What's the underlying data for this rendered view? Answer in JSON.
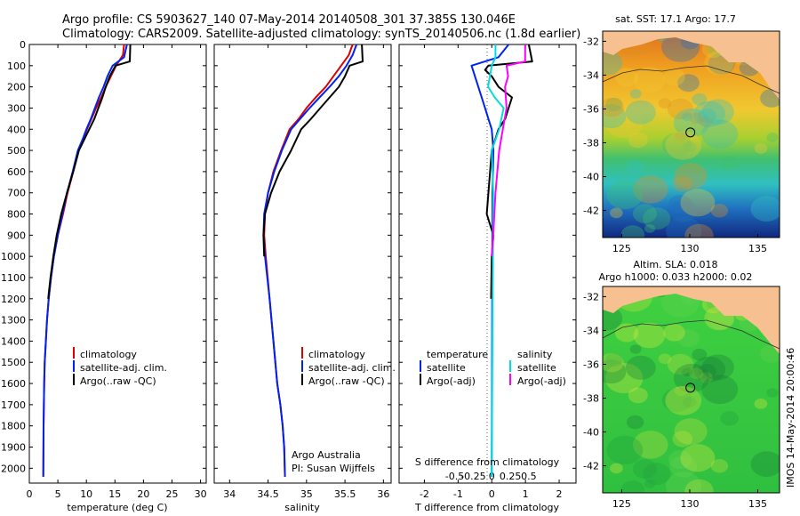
{
  "title_line1": "Argo profile: CS 5903627_140 07-May-2014 20140508_301 37.385S 130.046E",
  "title_line2": "Climatology: CARS2009. Satellite-adjusted climatology: synTS_20140506.nc (1.8d earlier)",
  "side_stamp": "IMOS 14-May-2014 20:00:46",
  "colors": {
    "clim": "#dd0000",
    "sat": "#0022ee",
    "argo": "#000000",
    "sat_s": "#00dddd",
    "argo_s": "#ff00ff",
    "land": "#f7c090"
  },
  "chart_data": [
    {
      "type": "line",
      "id": "temperature",
      "xlabel": "temperature (deg C)",
      "ylabel": "",
      "xlim": [
        0,
        31
      ],
      "ylim": [
        2070,
        0
      ],
      "xticks": [
        0,
        5,
        10,
        15,
        20,
        25,
        30
      ],
      "yticks": [
        0,
        100,
        200,
        300,
        400,
        500,
        600,
        700,
        800,
        900,
        1000,
        1100,
        1200,
        1300,
        1400,
        1500,
        1600,
        1700,
        1800,
        1900,
        2000
      ],
      "legend": [
        "climatology",
        "satellite-adj. clim.",
        "Argo(..raw -QC)"
      ],
      "series": [
        {
          "name": "climatology",
          "color": "#dd0000",
          "x": [
            16.6,
            16.4,
            15.2,
            14.3,
            13.4,
            12.6,
            11.7,
            10.9,
            10.1,
            9.4,
            8.6,
            7.7,
            6.7,
            5.9,
            5.0,
            4.3,
            3.8,
            3.4,
            3.1,
            2.9,
            2.7,
            2.6,
            2.5,
            2.45
          ],
          "y": [
            0,
            50,
            100,
            150,
            200,
            250,
            300,
            350,
            400,
            450,
            500,
            600,
            700,
            800,
            900,
            1000,
            1100,
            1200,
            1300,
            1400,
            1500,
            1600,
            1800,
            2040
          ]
        },
        {
          "name": "satellite-adj. clim.",
          "color": "#0022ee",
          "x": [
            17.1,
            16.6,
            14.6,
            13.7,
            13.0,
            12.2,
            11.5,
            10.8,
            10.0,
            9.3,
            8.5,
            7.6,
            6.6,
            5.8,
            5.0,
            4.3,
            3.8,
            3.4,
            3.1,
            2.9,
            2.7,
            2.6,
            2.5,
            2.45
          ],
          "y": [
            0,
            60,
            100,
            150,
            200,
            250,
            300,
            350,
            400,
            450,
            500,
            600,
            700,
            800,
            900,
            1000,
            1100,
            1200,
            1300,
            1400,
            1500,
            1600,
            1800,
            2040
          ]
        },
        {
          "name": "Argo(..raw -QC)",
          "color": "#000000",
          "x": [
            17.7,
            17.6,
            15.1,
            14.1,
            13.4,
            12.8,
            12.1,
            11.4,
            10.5,
            9.6,
            8.7,
            7.7,
            6.6,
            5.6,
            4.8,
            4.2,
            3.7,
            3.3
          ],
          "y": [
            0,
            80,
            100,
            150,
            200,
            250,
            300,
            350,
            400,
            450,
            500,
            600,
            700,
            800,
            900,
            1000,
            1100,
            1200
          ]
        }
      ]
    },
    {
      "type": "line",
      "id": "salinity",
      "xlabel": "salinity",
      "xlim": [
        33.8,
        36.1
      ],
      "ylim": [
        2070,
        0
      ],
      "xticks": [
        34,
        34.5,
        35,
        35.5,
        36
      ],
      "legend": [
        "climatology",
        "satellite-adj. clim.",
        "Argo(..raw -QC)"
      ],
      "annotations": [
        "Argo Australia",
        "PI: Susan Wijffels"
      ],
      "series": [
        {
          "name": "climatology",
          "color": "#dd0000",
          "x": [
            35.6,
            35.55,
            35.45,
            35.35,
            35.25,
            35.12,
            35.0,
            34.9,
            34.78,
            34.67,
            34.57,
            34.5,
            34.46,
            34.45,
            34.47,
            34.52,
            34.57,
            34.62,
            34.66,
            34.69,
            34.71,
            34.72
          ],
          "y": [
            0,
            50,
            100,
            150,
            200,
            250,
            300,
            350,
            400,
            500,
            600,
            700,
            800,
            900,
            1000,
            1200,
            1400,
            1600,
            1700,
            1800,
            1900,
            2040
          ]
        },
        {
          "name": "satellite-adj. clim.",
          "color": "#0022ee",
          "x": [
            35.65,
            35.6,
            35.52,
            35.42,
            35.3,
            35.17,
            35.04,
            34.92,
            34.8,
            34.68,
            34.58,
            34.5,
            34.45,
            34.44,
            34.46,
            34.52,
            34.57,
            34.62,
            34.66,
            34.69,
            34.71,
            34.72
          ],
          "y": [
            0,
            50,
            100,
            150,
            200,
            250,
            300,
            350,
            400,
            500,
            600,
            700,
            800,
            900,
            1000,
            1200,
            1400,
            1600,
            1700,
            1800,
            1900,
            2040
          ]
        },
        {
          "name": "Argo(..raw -QC)",
          "color": "#000000",
          "x": [
            35.72,
            35.73,
            35.56,
            35.5,
            35.42,
            35.3,
            35.18,
            35.06,
            34.93,
            34.8,
            34.65,
            34.54,
            34.46,
            34.44,
            34.45
          ],
          "y": [
            0,
            80,
            100,
            150,
            200,
            250,
            300,
            350,
            400,
            500,
            600,
            700,
            800,
            900,
            1000
          ]
        }
      ]
    },
    {
      "type": "line",
      "id": "difference",
      "xlabel": "T difference from climatology",
      "xlabel_top": "S difference from climatology",
      "xlim": [
        -2.75,
        2.5
      ],
      "ylim": [
        2070,
        0
      ],
      "xticks": [
        -2,
        -1,
        0,
        1,
        2
      ],
      "xticks_s": [
        -0.5,
        -0.25,
        0,
        0.25,
        0.5
      ],
      "legend_t": [
        "temperature",
        "satellite",
        "Argo(-adj)"
      ],
      "legend_s": [
        "salinity",
        "satellite",
        "Argo(-adj)"
      ],
      "series": [
        {
          "name": "T satellite",
          "color": "#0022ee",
          "x": [
            0.5,
            0.2,
            -0.6,
            -0.5,
            -0.4,
            -0.3,
            -0.2,
            -0.1,
            0.0,
            0.05,
            0.02,
            0.0
          ],
          "y": [
            0,
            60,
            100,
            150,
            200,
            250,
            300,
            350,
            400,
            500,
            700,
            2040
          ]
        },
        {
          "name": "T Argo(-adj)",
          "color": "#000000",
          "x": [
            1.1,
            1.2,
            -0.1,
            -0.2,
            0.0,
            0.2,
            0.6,
            0.5,
            0.4,
            0.2,
            0.0,
            -0.15,
            -0.05,
            0.05,
            0.0,
            -0.02
          ],
          "y": [
            0,
            80,
            100,
            120,
            150,
            200,
            250,
            300,
            350,
            400,
            500,
            800,
            850,
            900,
            1000,
            1200
          ]
        },
        {
          "name": "S satellite",
          "color": "#00dddd",
          "x": [
            0.05,
            0.05,
            0.0,
            -0.05,
            0.04,
            0.16,
            0.1,
            0.0,
            0.02,
            0.0
          ],
          "y": [
            0,
            60,
            100,
            200,
            250,
            300,
            400,
            500,
            700,
            2040
          ]
        },
        {
          "name": "S Argo(-adj)",
          "color": "#ff00ff",
          "x": [
            0.45,
            0.45,
            0.2,
            0.22,
            0.18,
            0.2,
            0.15,
            0.1,
            0.05,
            0.02,
            0.0
          ],
          "y": [
            0,
            80,
            100,
            150,
            200,
            300,
            400,
            500,
            700,
            900,
            1000
          ]
        }
      ]
    },
    {
      "type": "heatmap",
      "id": "sst_map",
      "title": "sat. SST: 17.1  Argo: 17.7",
      "xlim": [
        123.6,
        136.6
      ],
      "ylim": [
        -43.6,
        -31.4
      ],
      "xticks": [
        125,
        130,
        135
      ],
      "yticks": [
        -32,
        -34,
        -36,
        -38,
        -40,
        -42
      ],
      "marker": {
        "lon": 130.046,
        "lat": -37.385
      }
    },
    {
      "type": "heatmap",
      "id": "sla_map",
      "title": "Altim. SLA: 0.018",
      "subtitle": "Argo h1000: 0.033 h2000: 0.02",
      "xlim": [
        123.6,
        136.6
      ],
      "ylim": [
        -43.6,
        -31.4
      ],
      "xticks": [
        125,
        130,
        135
      ],
      "yticks": [
        -32,
        -34,
        -36,
        -38,
        -40,
        -42
      ],
      "marker": {
        "lon": 130.046,
        "lat": -37.385
      }
    }
  ]
}
